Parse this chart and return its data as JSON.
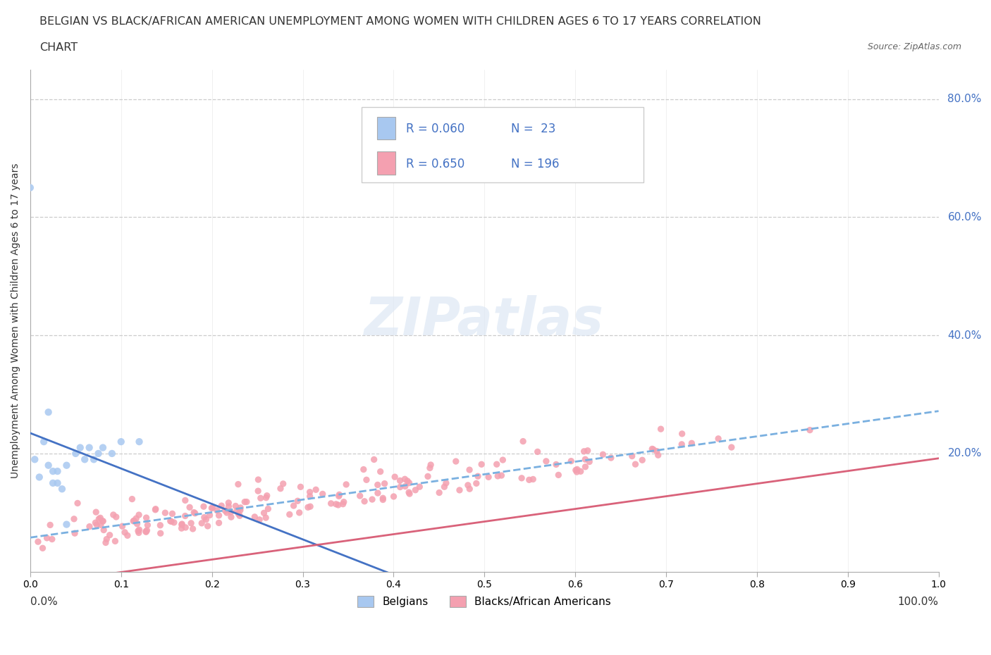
{
  "title_line1": "BELGIAN VS BLACK/AFRICAN AMERICAN UNEMPLOYMENT AMONG WOMEN WITH CHILDREN AGES 6 TO 17 YEARS CORRELATION",
  "title_line2": "CHART",
  "source": "Source: ZipAtlas.com",
  "ylabel": "Unemployment Among Women with Children Ages 6 to 17 years",
  "legend_R_belgian": "R = 0.060",
  "legend_N_belgian": "N =  23",
  "legend_R_black": "R = 0.650",
  "legend_N_black": "N = 196",
  "belgian_color": "#a8c8f0",
  "black_color": "#f4a0b0",
  "belgian_trend_color": "#4472c4",
  "black_trend_color": "#d9627a",
  "dashed_trend_color": "#7ab0e0",
  "ytick_color": "#4472c4",
  "background_color": "#ffffff",
  "watermark_color": "#dde8f5",
  "grid_color": "#cccccc"
}
